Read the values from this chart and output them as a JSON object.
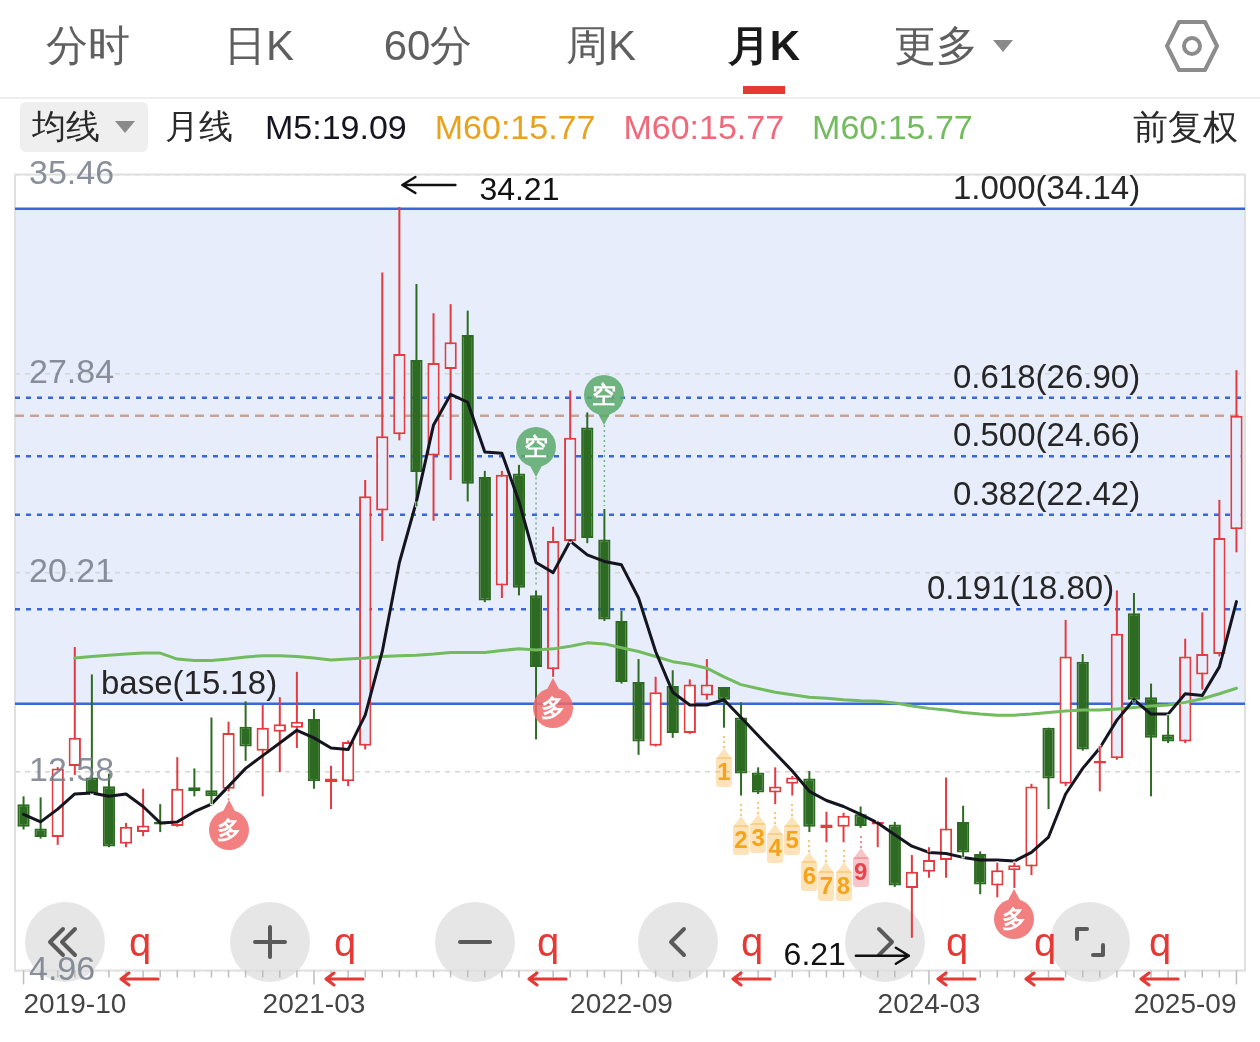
{
  "chart_data": {
    "type": "candlestick",
    "x": [
      "2019-10",
      "2019-11",
      "2019-12",
      "2020-01",
      "2020-02",
      "2020-03",
      "2020-04",
      "2020-05",
      "2020-06",
      "2020-07",
      "2020-08",
      "2020-09",
      "2020-10",
      "2020-11",
      "2020-12",
      "2021-01",
      "2021-02",
      "2021-03",
      "2021-04",
      "2021-05",
      "2021-06",
      "2021-07",
      "2021-08",
      "2021-09",
      "2021-10",
      "2021-11",
      "2021-12",
      "2022-01",
      "2022-02",
      "2022-03",
      "2022-04",
      "2022-05",
      "2022-06",
      "2022-07",
      "2022-08",
      "2022-09",
      "2022-10",
      "2022-11",
      "2022-12",
      "2023-01",
      "2023-02",
      "2023-03",
      "2023-04",
      "2023-05",
      "2023-06",
      "2023-07",
      "2023-08",
      "2023-09",
      "2023-10",
      "2023-11",
      "2023-12",
      "2024-01",
      "2024-02",
      "2024-03",
      "2024-04",
      "2024-05",
      "2024-06",
      "2024-07",
      "2024-08",
      "2024-09",
      "2024-10",
      "2024-11",
      "2024-12",
      "2025-01",
      "2025-02",
      "2025-03",
      "2025-04",
      "2025-05",
      "2025-06",
      "2025-07",
      "2025-08",
      "2025-09"
    ],
    "ohlc": [
      [
        11.33,
        11.63,
        10.36,
        10.46
      ],
      [
        10.4,
        11.59,
        10.01,
        10.07
      ],
      [
        10.07,
        12.75,
        9.77,
        12.7
      ],
      [
        12.79,
        17.35,
        12.45,
        13.87
      ],
      [
        12.35,
        16.3,
        11.72,
        11.76
      ],
      [
        12.02,
        12.5,
        9.68,
        9.71
      ],
      [
        9.81,
        10.61,
        9.68,
        10.46
      ],
      [
        10.26,
        11.92,
        10.1,
        10.51
      ],
      [
        10.65,
        11.33,
        10.26,
        10.55
      ],
      [
        10.49,
        13.13,
        10.46,
        11.92
      ],
      [
        11.98,
        12.7,
        11.63,
        11.82
      ],
      [
        11.86,
        14.65,
        11.33,
        11.63
      ],
      [
        11.92,
        14.49,
        11.82,
        14.06
      ],
      [
        14.3,
        15.27,
        12.99,
        13.54
      ],
      [
        13.38,
        15.13,
        11.63,
        14.26
      ],
      [
        14.1,
        15.43,
        12.56,
        14.39
      ],
      [
        14.26,
        16.4,
        13.48,
        14.49
      ],
      [
        14.59,
        14.98,
        11.92,
        12.21
      ],
      [
        12.17,
        12.8,
        11.14,
        12.31
      ],
      [
        12.21,
        13.77,
        12.02,
        13.71
      ],
      [
        13.57,
        23.75,
        13.42,
        23.13
      ],
      [
        22.58,
        31.7,
        21.41,
        25.43
      ],
      [
        25.5,
        34.21,
        25.27,
        28.58
      ],
      [
        28.35,
        31.26,
        22.74,
        24.06
      ],
      [
        24.69,
        30.14,
        22.19,
        28.23
      ],
      [
        28.0,
        30.49,
        23.75,
        29.03
      ],
      [
        29.31,
        30.24,
        22.93,
        23.61
      ],
      [
        23.87,
        24.1,
        19.07,
        19.13
      ],
      [
        19.71,
        24.1,
        19.23,
        23.95
      ],
      [
        24.0,
        24.33,
        19.33,
        19.62
      ],
      [
        19.33,
        19.52,
        13.81,
        16.59
      ],
      [
        16.5,
        21.96,
        16.21,
        21.41
      ],
      [
        21.41,
        27.18,
        21.37,
        25.37
      ],
      [
        25.76,
        26.34,
        21.33,
        21.53
      ],
      [
        21.47,
        22.64,
        18.35,
        18.41
      ],
      [
        18.35,
        18.74,
        15.95,
        16.01
      ],
      [
        16.01,
        16.89,
        13.22,
        13.73
      ],
      [
        13.57,
        16.21,
        13.54,
        15.62
      ],
      [
        15.86,
        16.46,
        13.87,
        14.06
      ],
      [
        14.06,
        16.11,
        14.02,
        15.91
      ],
      [
        15.49,
        16.89,
        15.33,
        15.91
      ],
      [
        15.82,
        15.82,
        14.26,
        15.33
      ],
      [
        14.65,
        15.23,
        11.66,
        12.5
      ],
      [
        12.54,
        12.74,
        11.72,
        11.78
      ],
      [
        11.78,
        12.74,
        11.33,
        12.01
      ],
      [
        12.11,
        12.41,
        11.66,
        12.35
      ],
      [
        12.31,
        12.6,
        10.26,
        10.46
      ],
      [
        10.42,
        11.04,
        9.87,
        10.55
      ],
      [
        10.46,
        11.0,
        9.87,
        10.89
      ],
      [
        10.94,
        11.24,
        10.42,
        10.49
      ],
      [
        10.55,
        10.69,
        9.68,
        10.65
      ],
      [
        10.55,
        10.65,
        8.16,
        8.21
      ],
      [
        8.12,
        9.38,
        6.21,
        8.74
      ],
      [
        8.74,
        9.68,
        8.51,
        9.19
      ],
      [
        9.19,
        12.35,
        8.51,
        10.4
      ],
      [
        10.65,
        11.27,
        9.29,
        9.48
      ],
      [
        9.42,
        9.52,
        7.88,
        8.25
      ],
      [
        8.21,
        9.09,
        7.76,
        8.8
      ],
      [
        8.8,
        9.09,
        8.12,
        8.99
      ],
      [
        8.94,
        12.11,
        8.61,
        12.01
      ],
      [
        14.26,
        14.26,
        11.14,
        12.31
      ],
      [
        12.11,
        18.39,
        12.02,
        16.99
      ],
      [
        16.79,
        17.08,
        13.38,
        13.42
      ],
      [
        12.89,
        13.57,
        11.82,
        12.99
      ],
      [
        13.09,
        19.52,
        13.03,
        17.86
      ],
      [
        18.64,
        19.42,
        15.23,
        15.33
      ],
      [
        15.43,
        15.95,
        11.63,
        13.87
      ],
      [
        14.0,
        14.74,
        13.67,
        13.73
      ],
      [
        13.73,
        17.67,
        13.67,
        16.99
      ],
      [
        16.3,
        18.68,
        15.72,
        17.08
      ],
      [
        17.08,
        22.99,
        16.99,
        21.53
      ],
      [
        21.86,
        27.96,
        20.98,
        26.21
      ]
    ],
    "colors": [
      "#2e6b22",
      "#2e6b22",
      "#e23b40",
      "#e23b40",
      "#2e6b22",
      "#2e6b22",
      "#e23b40",
      "#e23b40",
      "#2e6b22",
      "#e23b40",
      "#2e6b22",
      "#2e6b22",
      "#e23b40",
      "#2e6b22",
      "#e23b40",
      "#e23b40",
      "#e23b40",
      "#2e6b22",
      "#e23b40",
      "#e23b40",
      "#e23b40",
      "#e23b40",
      "#e23b40",
      "#2e6b22",
      "#e23b40",
      "#e23b40",
      "#2e6b22",
      "#2e6b22",
      "#e23b40",
      "#2e6b22",
      "#2e6b22",
      "#e23b40",
      "#e23b40",
      "#2e6b22",
      "#2e6b22",
      "#2e6b22",
      "#2e6b22",
      "#e23b40",
      "#2e6b22",
      "#e23b40",
      "#e23b40",
      "#2e6b22",
      "#2e6b22",
      "#2e6b22",
      "#e23b40",
      "#e23b40",
      "#2e6b22",
      "#e23b40",
      "#e23b40",
      "#2e6b22",
      "#e23b40",
      "#2e6b22",
      "#e23b40",
      "#e23b40",
      "#e23b40",
      "#2e6b22",
      "#2e6b22",
      "#e23b40",
      "#e23b40",
      "#e23b40",
      "#2e6b22",
      "#e23b40",
      "#2e6b22",
      "#e23b40",
      "#e23b40",
      "#2e6b22",
      "#2e6b22",
      "#2e6b22",
      "#e23b40",
      "#e23b40",
      "#e23b40",
      "#e23b40"
    ],
    "series": [
      {
        "name": "M5:19.09",
        "type": "line",
        "color": "#15151f",
        "values": [
          10.94,
          10.65,
          11.14,
          11.72,
          11.76,
          11.63,
          11.72,
          11.24,
          10.61,
          10.65,
          11.04,
          11.33,
          12.01,
          12.7,
          13.19,
          13.67,
          14.16,
          13.87,
          13.48,
          13.42,
          14.74,
          17.18,
          20.59,
          22.93,
          25.86,
          27.03,
          26.73,
          24.82,
          24.78,
          22.93,
          20.59,
          20.2,
          21.41,
          20.88,
          20.63,
          20.5,
          19.23,
          17.18,
          15.62,
          15.13,
          15.13,
          15.33,
          14.65,
          13.96,
          13.28,
          12.6,
          11.82,
          11.47,
          11.24,
          10.94,
          10.61,
          10.16,
          9.72,
          9.48,
          9.44,
          9.29,
          9.19,
          9.19,
          9.15,
          9.48,
          10.07,
          11.72,
          12.7,
          13.48,
          14.55,
          15.33,
          14.78,
          14.78,
          15.56,
          15.49,
          16.59,
          19.09
        ]
      },
      {
        "name": "M60:15.77",
        "type": "line",
        "color": "#e8a21c",
        "values": [
          null,
          null,
          null,
          null,
          null,
          null,
          null,
          null,
          null,
          null,
          null,
          null,
          null,
          null,
          null,
          null,
          null,
          null,
          null,
          null,
          null,
          null,
          null,
          null,
          null,
          null,
          null,
          null,
          null,
          null,
          null,
          null,
          null,
          null,
          null,
          null,
          null,
          null,
          null,
          null,
          null,
          null,
          null,
          null,
          null,
          null,
          null,
          null,
          null,
          null,
          null,
          null,
          null,
          null,
          null,
          null,
          null,
          null,
          null,
          null,
          null,
          null,
          null,
          null,
          null,
          null,
          null,
          null,
          null,
          null,
          null,
          null
        ]
      },
      {
        "name": "M60:15.77",
        "type": "line",
        "color": "#f0687a",
        "values": [
          null,
          null,
          null,
          null,
          null,
          null,
          null,
          null,
          null,
          null,
          null,
          null,
          null,
          null,
          null,
          null,
          null,
          null,
          null,
          null,
          null,
          null,
          null,
          null,
          null,
          null,
          null,
          null,
          null,
          null,
          null,
          null,
          null,
          null,
          null,
          null,
          null,
          null,
          null,
          null,
          null,
          null,
          null,
          null,
          null,
          null,
          null,
          null,
          null,
          null,
          null,
          null,
          null,
          null,
          null,
          null,
          null,
          null,
          null,
          null,
          null,
          null,
          null,
          null,
          null,
          null,
          null,
          null,
          null,
          null,
          null,
          null
        ]
      },
      {
        "name": "M60:15.77",
        "type": "line",
        "color": "#72bb5e",
        "values": [
          null,
          null,
          null,
          16.93,
          16.99,
          17.04,
          17.08,
          17.12,
          17.12,
          16.89,
          16.83,
          16.83,
          16.89,
          16.97,
          17.02,
          17.02,
          16.99,
          16.93,
          16.85,
          16.89,
          16.93,
          16.99,
          17.02,
          17.04,
          17.08,
          17.14,
          17.14,
          17.14,
          17.22,
          17.28,
          17.24,
          17.28,
          17.38,
          17.51,
          17.47,
          17.32,
          17.18,
          16.99,
          16.79,
          16.69,
          16.54,
          16.21,
          15.91,
          15.76,
          15.62,
          15.52,
          15.43,
          15.39,
          15.33,
          15.29,
          15.27,
          15.21,
          15.09,
          15.0,
          14.94,
          14.84,
          14.78,
          14.74,
          14.74,
          14.78,
          14.84,
          14.9,
          14.94,
          14.94,
          14.98,
          15.03,
          15.09,
          15.13,
          15.23,
          15.37,
          15.56,
          15.77
        ]
      }
    ],
    "xlim": [
      "2019-09-16",
      "2025-09-16"
    ],
    "xticks": [
      "2019-10",
      "2021-03",
      "2022-09",
      "2024-03",
      "2025-09"
    ],
    "ylim": [
      4.96,
      35.46
    ],
    "yticks": [
      35.46,
      27.84,
      20.21,
      12.58,
      4.96
    ],
    "grid": "y",
    "legend": "top",
    "bands": [
      {
        "axis": "y",
        "from": 15.18,
        "to": 34.14,
        "color": "#e8edfc"
      }
    ],
    "ref_lines": [
      {
        "axis": "y",
        "value": 34.14,
        "label": "1.000(34.14)",
        "color": "#3a66db",
        "line_style": "solid"
      },
      {
        "axis": "y",
        "value": 26.9,
        "label": "0.618(26.90)",
        "color": "#3a66db",
        "line_style": "dotted"
      },
      {
        "axis": "y",
        "value": 24.66,
        "label": "0.500(24.66)",
        "color": "#3a66db",
        "line_style": "dotted"
      },
      {
        "axis": "y",
        "value": 22.42,
        "label": "0.382(22.42)",
        "color": "#3a66db",
        "line_style": "dotted"
      },
      {
        "axis": "y",
        "value": 18.8,
        "label": "0.191(18.80)",
        "color": "#3a66db",
        "line_style": "dotted"
      },
      {
        "axis": "y",
        "value": 15.18,
        "label": "base(15.18)",
        "color": "#3a66db",
        "line_style": "solid"
      },
      {
        "axis": "y",
        "value": 26.21,
        "color": "#c9a38f",
        "line_style": "dashed"
      }
    ],
    "annotations": [
      "分时",
      "日K",
      "60分",
      "周K",
      "月K",
      "更多",
      "均线",
      "月线",
      "前复权",
      "q",
      "q",
      "q",
      "q",
      "q",
      "q",
      "q",
      {
        "text": "34.21",
        "x": "2021-08",
        "y": 34.21
      },
      {
        "text": "6.21",
        "x": "2024-02",
        "y": 6.21
      },
      {
        "text": "多",
        "x": "2020-10",
        "y": 11.82
      },
      {
        "text": "空",
        "x": "2022-04",
        "y": 19.52
      },
      {
        "text": "多",
        "x": "2022-05",
        "y": 16.21
      },
      {
        "text": "空",
        "x": "2022-08",
        "y": 22.64
      },
      {
        "text": "1",
        "x": "2023-03",
        "y": 14.26
      },
      {
        "text": "2",
        "x": "2023-04",
        "y": 11.66
      },
      {
        "text": "3",
        "x": "2023-05",
        "y": 11.72
      },
      {
        "text": "4",
        "x": "2023-06",
        "y": 11.33
      },
      {
        "text": "5",
        "x": "2023-07",
        "y": 11.66
      },
      {
        "text": "6",
        "x": "2023-08",
        "y": 10.26
      },
      {
        "text": "7",
        "x": "2023-09",
        "y": 9.87
      },
      {
        "text": "8",
        "x": "2023-10",
        "y": 9.87
      },
      {
        "text": "9",
        "x": "2023-11",
        "y": 10.42
      },
      {
        "text": "多",
        "x": "2024-08",
        "y": 8.12
      }
    ]
  }
}
